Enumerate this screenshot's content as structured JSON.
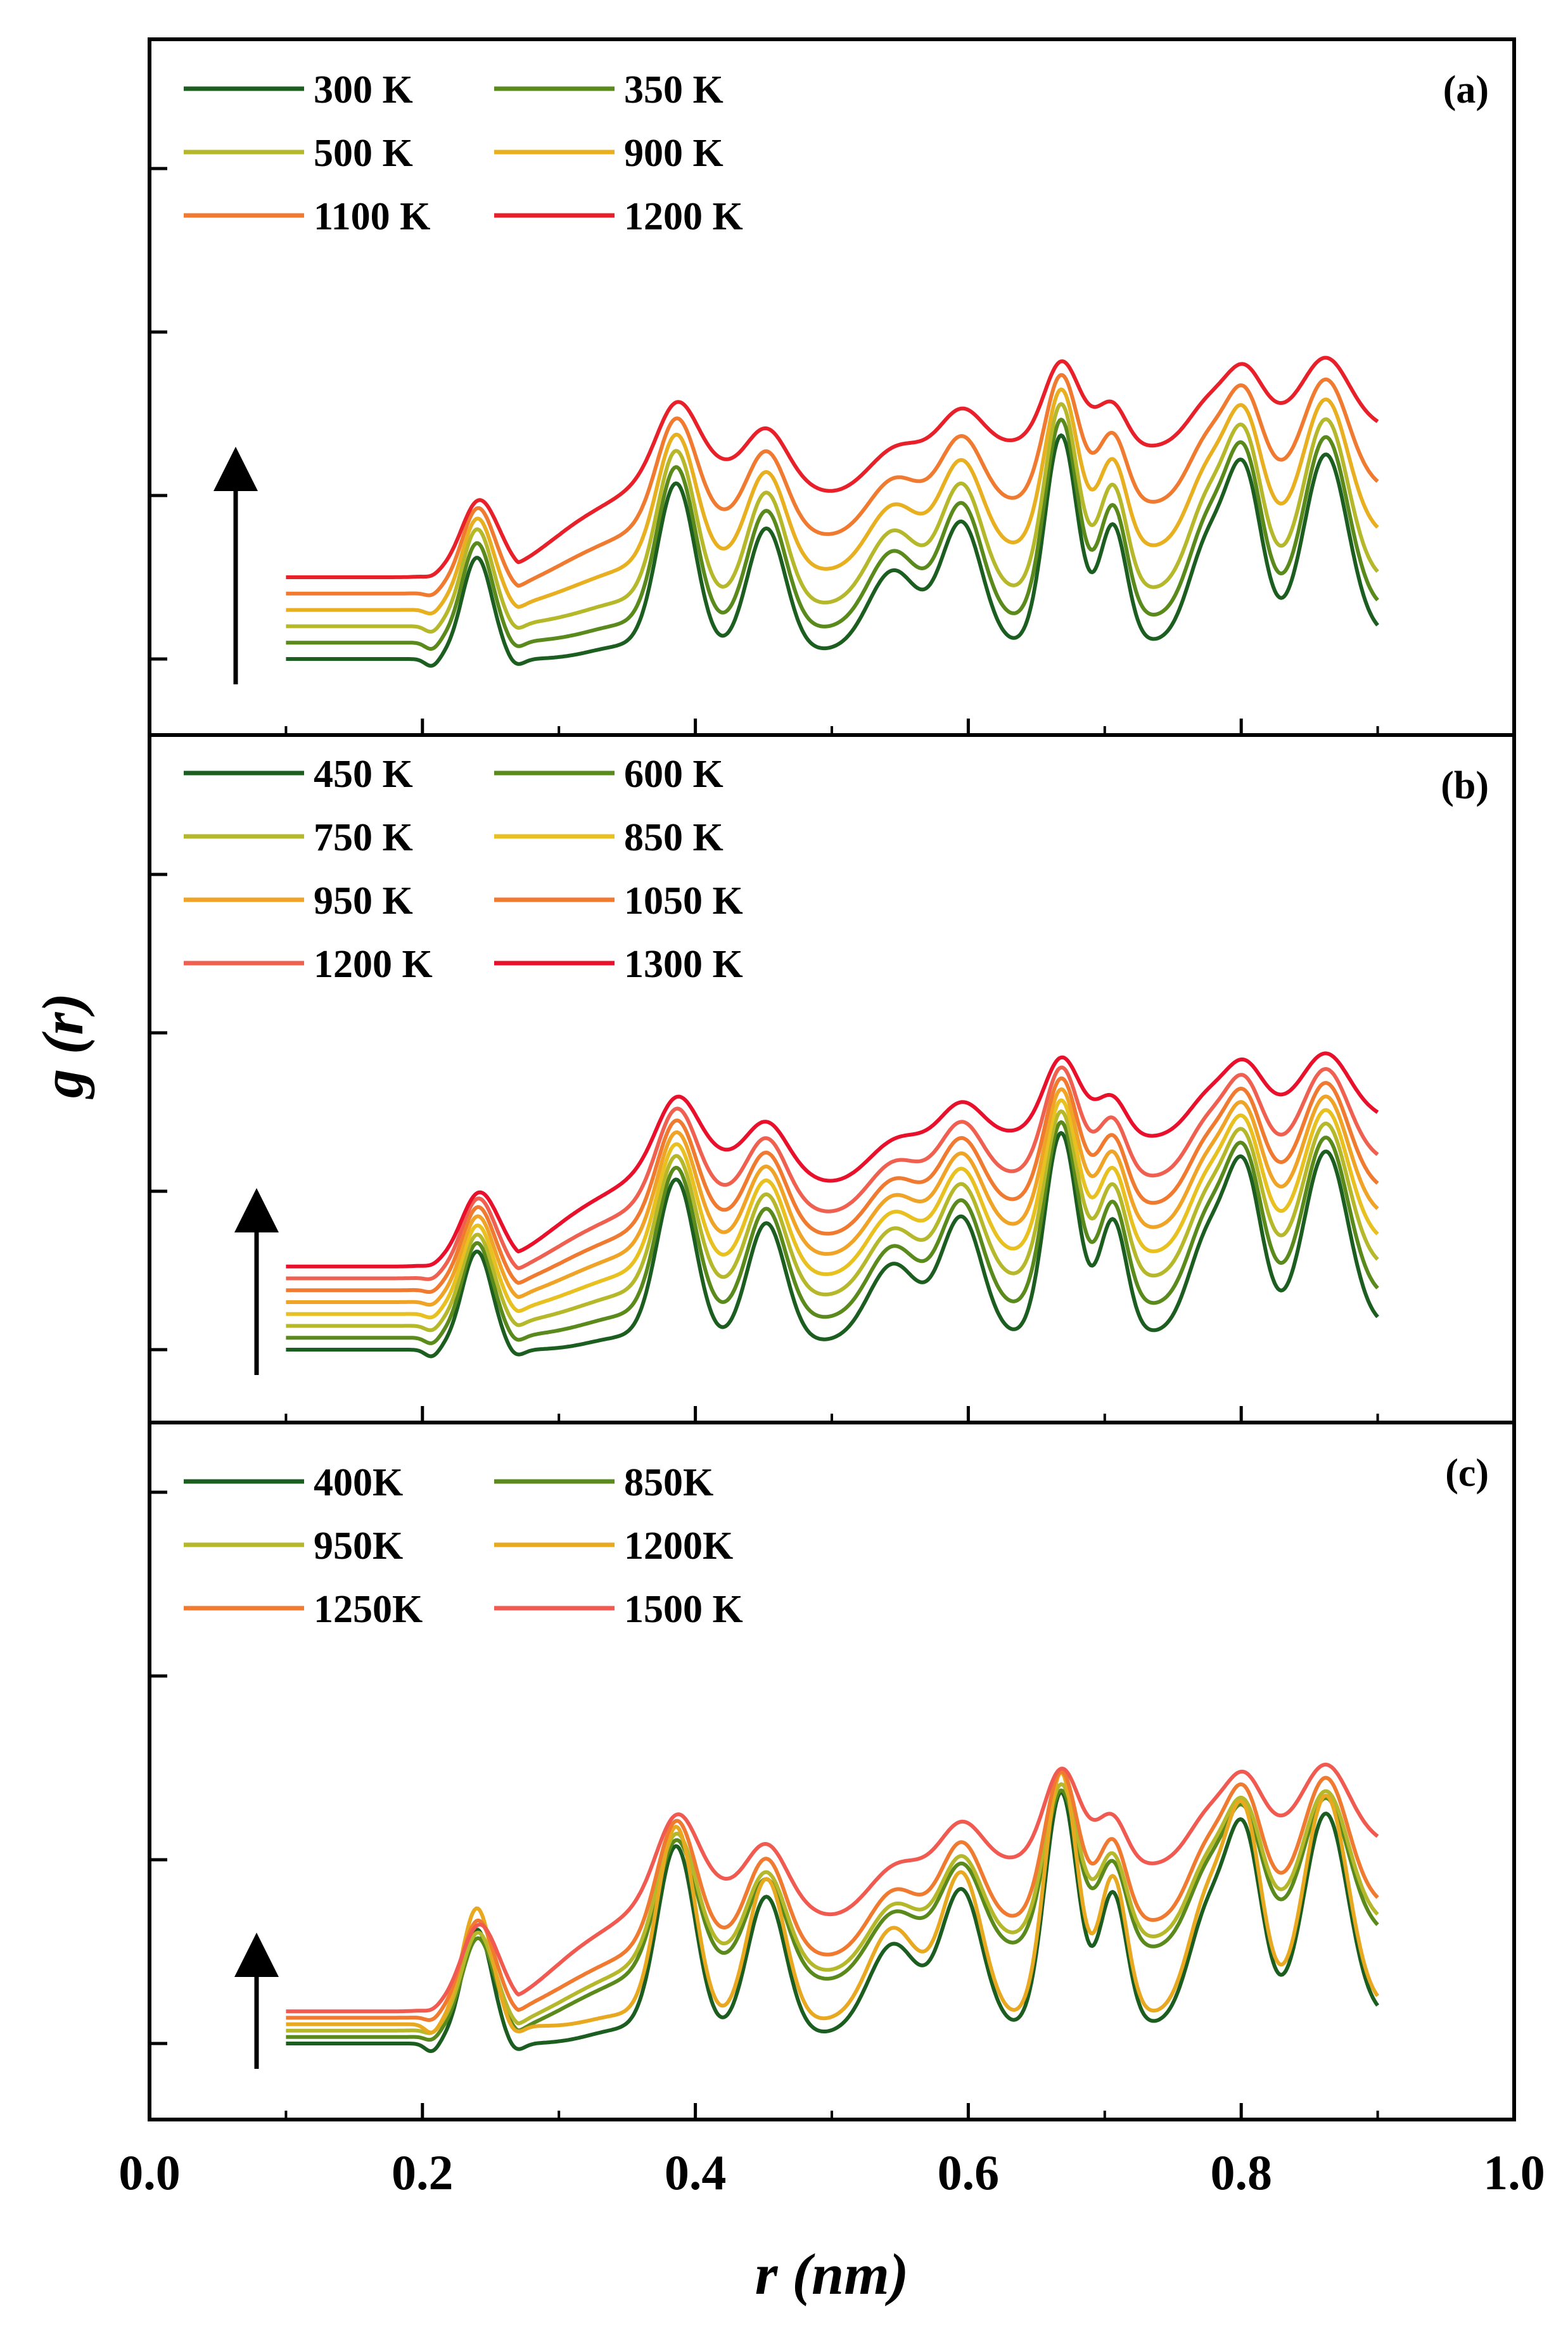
{
  "chart_data": {
    "type": "line",
    "xlabel": "r (nm)",
    "ylabel": "g (r)",
    "xlim": [
      0.0,
      1.0
    ],
    "x_ticks": [
      "0.0",
      "0.2",
      "0.4",
      "0.6",
      "0.8",
      "1.0"
    ],
    "x_range": [
      0.1,
      0.9
    ],
    "note": "Curves vertically offset for clarity (arrow indicates increasing temperature); y tick labels not shown.",
    "peak_positions_nm": [
      0.24,
      0.386,
      0.452,
      0.545,
      0.595,
      0.668,
      0.706,
      0.775,
      0.802,
      0.862
    ],
    "panels": [
      {
        "label": "(a)",
        "series": [
          {
            "name": "300 K",
            "color": "#1b5e20",
            "offset": 0.0,
            "amplitude": 1.0
          },
          {
            "name": "350 K",
            "color": "#5a8a1c",
            "offset": 0.2,
            "amplitude": 0.95
          },
          {
            "name": "500 K",
            "color": "#b6b82c",
            "offset": 0.4,
            "amplitude": 0.88
          },
          {
            "name": "900 K",
            "color": "#e8b020",
            "offset": 0.6,
            "amplitude": 0.72
          },
          {
            "name": "1100 K",
            "color": "#f07a30",
            "offset": 0.8,
            "amplitude": 0.55
          },
          {
            "name": "1200 K",
            "color": "#e8202a",
            "offset": 1.0,
            "amplitude": 0.3
          }
        ]
      },
      {
        "label": "(b)",
        "series": [
          {
            "name": "450 K",
            "color": "#1b5e20",
            "offset": 0.0,
            "amplitude": 1.0
          },
          {
            "name": "600 K",
            "color": "#5a8a1c",
            "offset": 0.15,
            "amplitude": 0.9
          },
          {
            "name": "750 K",
            "color": "#b6b82c",
            "offset": 0.3,
            "amplitude": 0.8
          },
          {
            "name": "850 K",
            "color": "#e8c020",
            "offset": 0.45,
            "amplitude": 0.72
          },
          {
            "name": "950 K",
            "color": "#efa428",
            "offset": 0.6,
            "amplitude": 0.64
          },
          {
            "name": "1050 K",
            "color": "#f07a30",
            "offset": 0.75,
            "amplitude": 0.56
          },
          {
            "name": "1200 K",
            "color": "#f06050",
            "offset": 0.9,
            "amplitude": 0.46
          },
          {
            "name": "1300 K",
            "color": "#e8102a",
            "offset": 1.05,
            "amplitude": 0.28
          }
        ]
      },
      {
        "label": "(c)",
        "series": [
          {
            "name": "400K",
            "color": "#1b5e20",
            "offset": 0.0,
            "amplitude": 1.0
          },
          {
            "name": "850K",
            "color": "#5a8a1c",
            "offset": 0.07,
            "amplitude": 0.62
          },
          {
            "name": "950K",
            "color": "#b6b82c",
            "offset": 0.14,
            "amplitude": 0.6
          },
          {
            "name": "1200K",
            "color": "#e8a820",
            "offset": 0.21,
            "amplitude": 1.05
          },
          {
            "name": "1250K",
            "color": "#f07a30",
            "offset": 0.28,
            "amplitude": 0.58
          },
          {
            "name": "1500 K",
            "color": "#f05a50",
            "offset": 0.35,
            "amplitude": 0.3
          }
        ]
      }
    ]
  }
}
